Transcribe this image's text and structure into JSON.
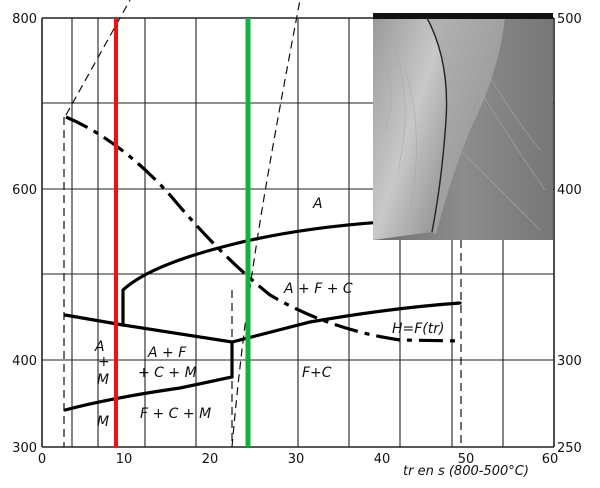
{
  "left_axis": {
    "ticks": [
      "800",
      "600",
      "400",
      "300"
    ]
  },
  "right_axis": {
    "ticks": [
      "500",
      "400",
      "300",
      "250"
    ]
  },
  "x_axis": {
    "ticks": [
      "0",
      "10",
      "20",
      "30",
      "40",
      "50",
      "60"
    ],
    "title": "tr en s (800-500°C)"
  },
  "regions": {
    "a_top": "A",
    "afc": "A + F + C",
    "hardness": "H=F(tr)",
    "a": "A",
    "plus": "+",
    "m_left": "M",
    "af": "A + F",
    "cm": "+ C + M",
    "fc": "F+C",
    "fcm": "F + C + M",
    "m_bottom": "M"
  },
  "colors": {
    "red_line": "#ee1111",
    "green_line": "#11b340",
    "curve": "#000000",
    "grid": "#222222"
  },
  "inset": {
    "image": "weld-macrograph-photo"
  }
}
